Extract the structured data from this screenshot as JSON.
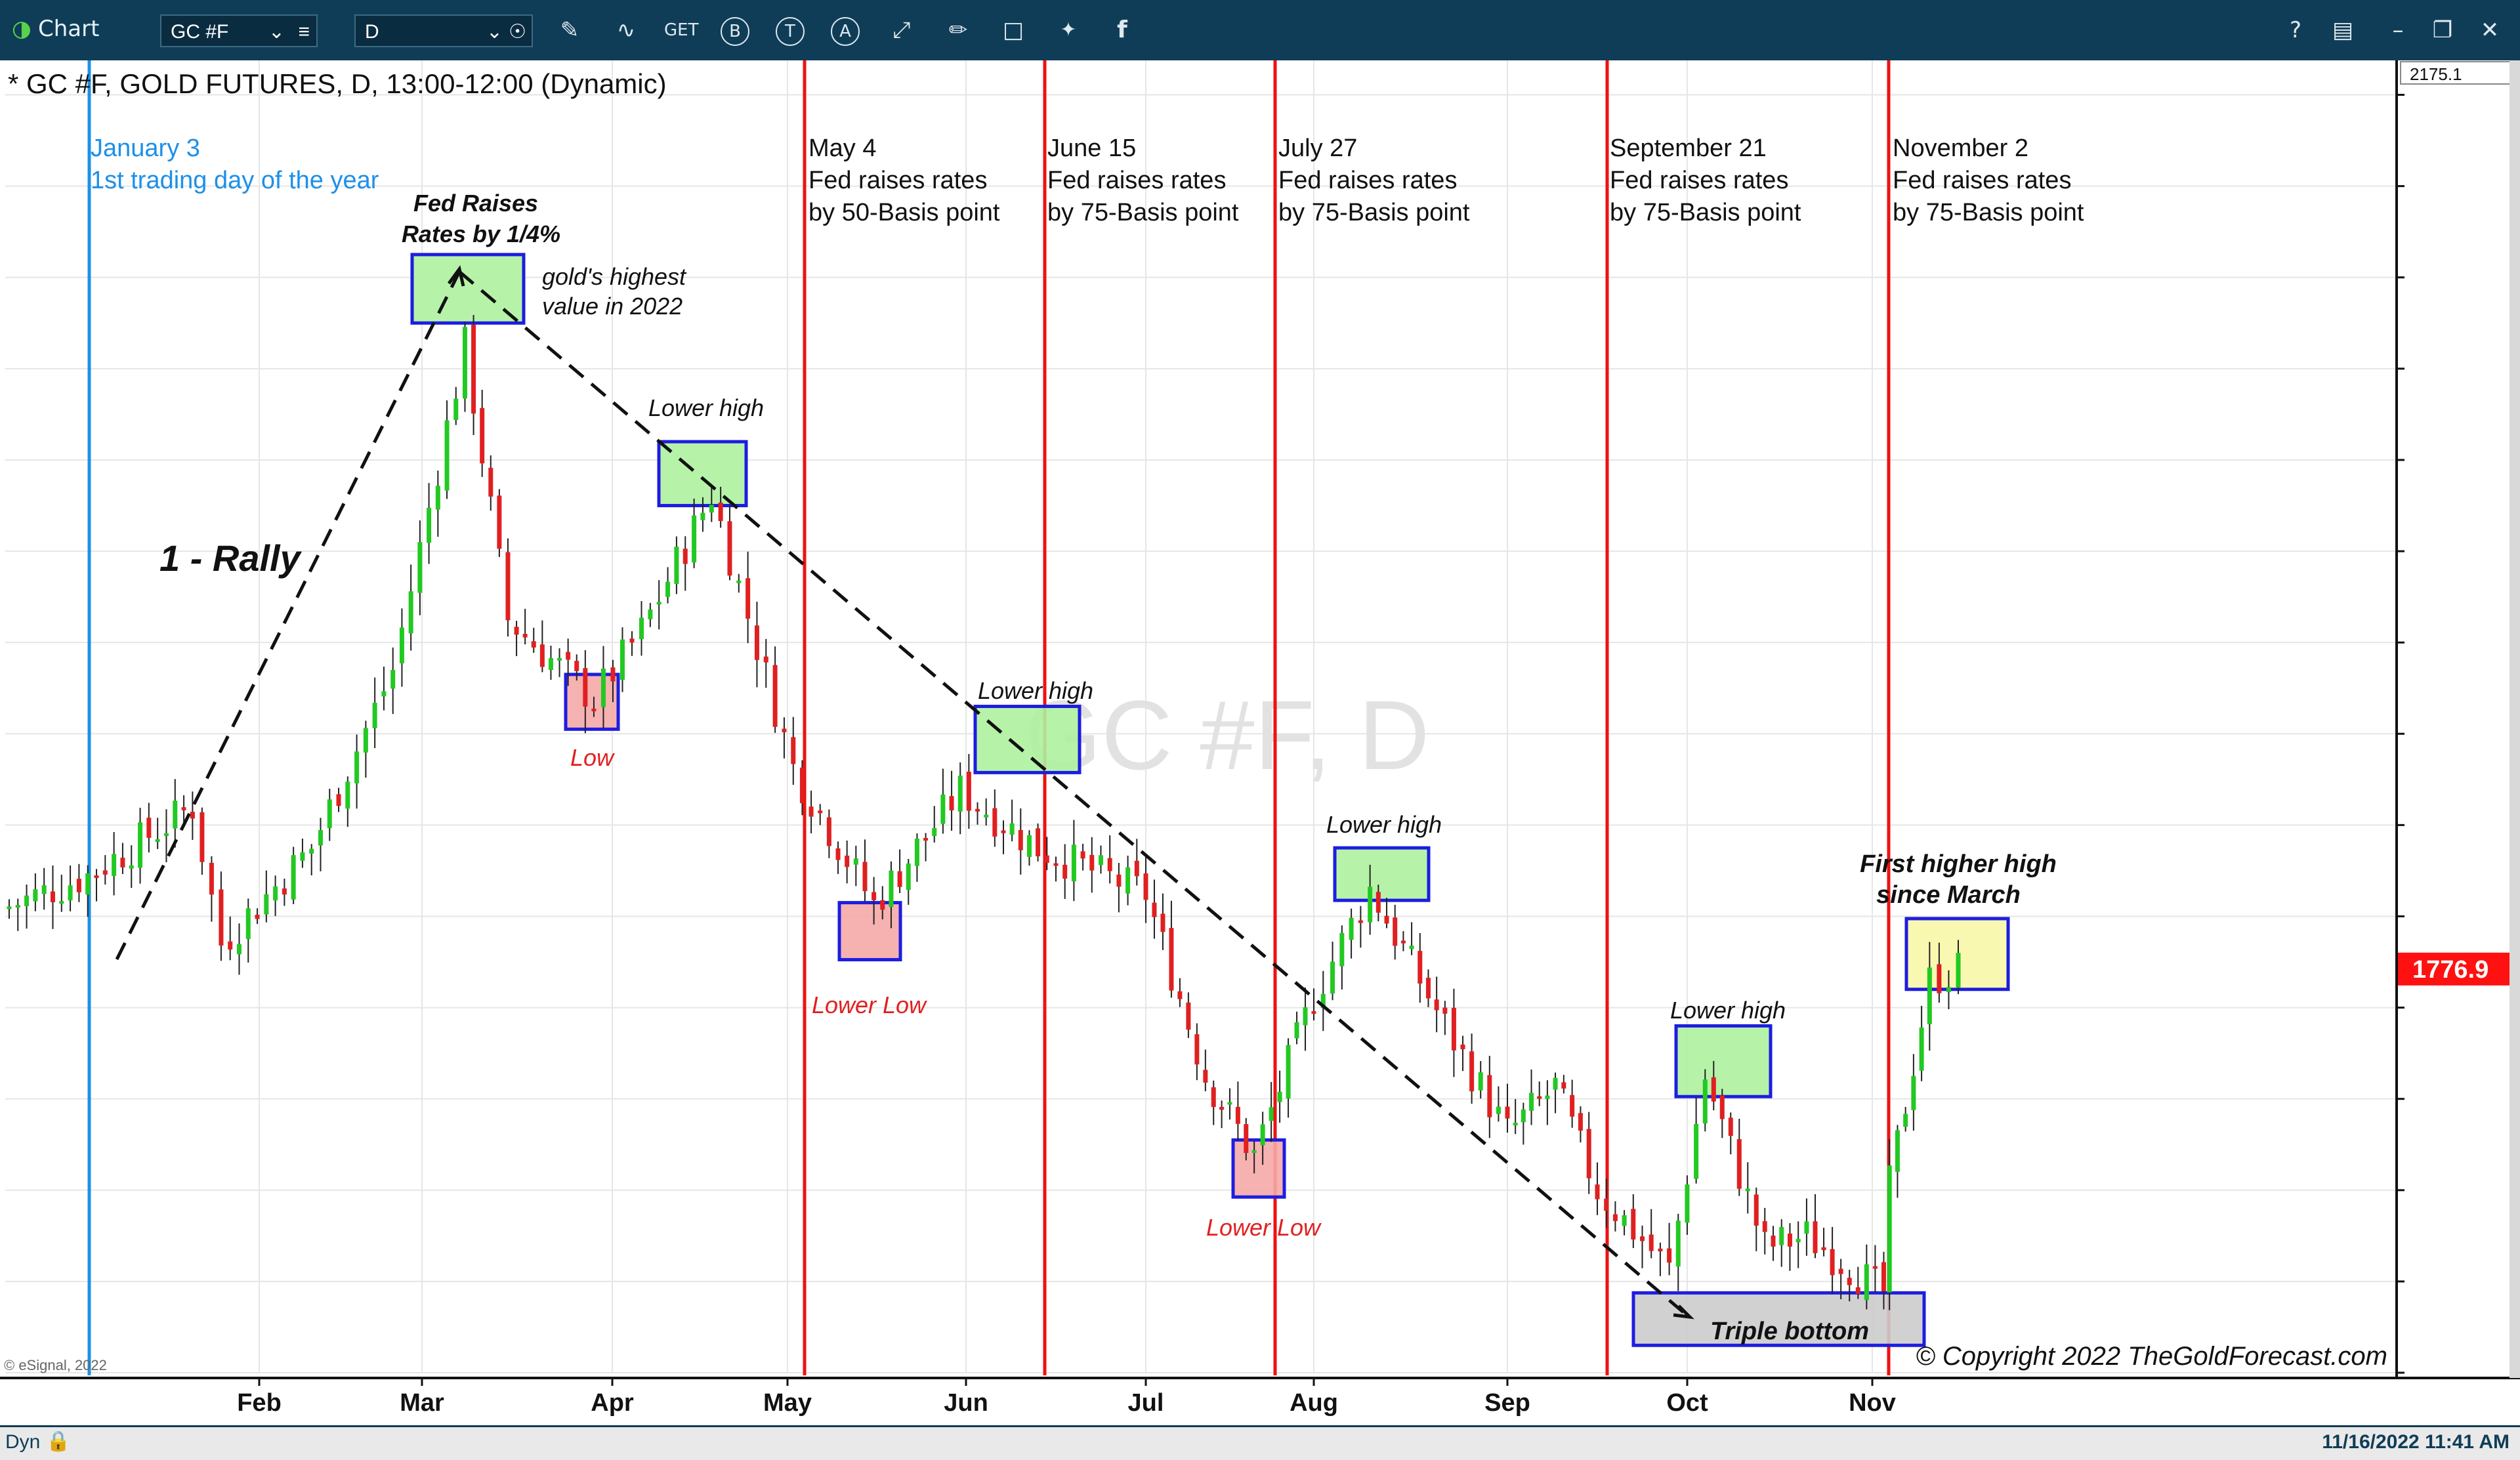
{
  "toolbar": {
    "app_title": "Chart",
    "symbol_value": "GC #F",
    "interval_value": "D",
    "icons": [
      "pencil-icon",
      "wave-icon",
      "get-icon",
      "b-icon",
      "t-icon",
      "a-icon",
      "pin-icon",
      "edit-icon",
      "comment-icon",
      "twitter-icon",
      "facebook-icon"
    ],
    "get_label": "GET",
    "b_label": "B",
    "t_label": "T",
    "a_label": "A",
    "help_label": "?",
    "right_icons": [
      "help-icon",
      "layout-icon",
      "minimize-icon",
      "restore-icon",
      "close-icon"
    ]
  },
  "chart": {
    "title": "* GC #F, GOLD FUTURES, D, 13:00-12:00 (Dynamic)",
    "watermark": "GC #F, D",
    "esignal": "© eSignal, 2022",
    "copyright": "© Copyright 2022 TheGoldForecast.com",
    "top_price_box": "2175.1",
    "current_price": "1776.9",
    "dyn_label": "Dyn",
    "status_datetime": "11/16/2022 11:41 AM"
  },
  "events": [
    {
      "lines": [
        "January 3",
        "1st trading day of the year"
      ],
      "color": "#1e90e8"
    },
    {
      "lines": [
        "May 4",
        "Fed raises rates",
        "by 50-Basis point"
      ],
      "color": "#111111"
    },
    {
      "lines": [
        "June 15",
        "Fed raises rates",
        "by 75-Basis point"
      ],
      "color": "#111111"
    },
    {
      "lines": [
        "July 27",
        "Fed raises rates",
        "by 75-Basis point"
      ],
      "color": "#111111"
    },
    {
      "lines": [
        "September 21",
        "Fed raises rates",
        "by 75-Basis point"
      ],
      "color": "#111111"
    },
    {
      "lines": [
        "November 2",
        "Fed raises rates",
        "by 75-Basis point"
      ],
      "color": "#111111"
    }
  ],
  "annotations": {
    "rally": "1 - Rally",
    "fed_raises_1": "Fed Raises",
    "fed_raises_2": "Rates by 1/4%",
    "golds_high_1": "gold's highest",
    "golds_high_2": "value in 2022",
    "lower_high": "Lower high",
    "low": "Low",
    "lower_low": "Lower Low",
    "triple_bottom": "Triple bottom",
    "first_higher_high_1": "First higher high",
    "first_higher_high_2": "since March"
  },
  "chart_data": {
    "type": "candlestick",
    "title": "* GC #F, GOLD FUTURES, D, 13:00-12:00 (Dynamic)",
    "y_ticks": [
      "2160.0",
      "2120.0",
      "2080.0",
      "2040.0",
      "2000.0",
      "1960.0",
      "1920.0",
      "1880.0",
      "1840.0",
      "1800.0",
      "1760.0",
      "1720.0",
      "1680.0",
      "1640.0",
      "1600.0"
    ],
    "ylim": [
      1600,
      2175.1
    ],
    "x_ticks": [
      "Feb",
      "Mar",
      "Apr",
      "May",
      "Jun",
      "Jul",
      "Aug",
      "Sep",
      "Oct",
      "Nov"
    ],
    "last_price": 1776.9,
    "anchors": [
      {
        "date": "Jan 3",
        "close": 1800
      },
      {
        "date": "Jan 14",
        "close": 1818
      },
      {
        "date": "Jan 25",
        "close": 1848
      },
      {
        "date": "Jan 28",
        "close": 1788
      },
      {
        "date": "Feb 10",
        "close": 1830
      },
      {
        "date": "Feb 24",
        "close": 1908
      },
      {
        "date": "Mar 8",
        "close": 2050
      },
      {
        "date": "Mar 15",
        "close": 1930
      },
      {
        "date": "Mar 29",
        "close": 1895
      },
      {
        "date": "Apr 6",
        "close": 1925
      },
      {
        "date": "Apr 18",
        "close": 1985
      },
      {
        "date": "May 2",
        "close": 1865
      },
      {
        "date": "May 16",
        "close": 1805
      },
      {
        "date": "May 31",
        "close": 1855
      },
      {
        "date": "Jun 13",
        "close": 1830
      },
      {
        "date": "Jul 1",
        "close": 1810
      },
      {
        "date": "Jul 12",
        "close": 1730
      },
      {
        "date": "Jul 21",
        "close": 1695
      },
      {
        "date": "Aug 1",
        "close": 1765
      },
      {
        "date": "Aug 10",
        "close": 1812
      },
      {
        "date": "Aug 22",
        "close": 1752
      },
      {
        "date": "Sep 1",
        "close": 1705
      },
      {
        "date": "Sep 9",
        "close": 1725
      },
      {
        "date": "Sep 16",
        "close": 1680
      },
      {
        "date": "Sep 28",
        "close": 1645
      },
      {
        "date": "Oct 4",
        "close": 1730
      },
      {
        "date": "Oct 14",
        "close": 1655
      },
      {
        "date": "Oct 21",
        "close": 1660
      },
      {
        "date": "Nov 3",
        "close": 1635
      },
      {
        "date": "Nov 4",
        "close": 1682
      },
      {
        "date": "Nov 11",
        "close": 1772
      },
      {
        "date": "Nov 16",
        "close": 1777
      }
    ],
    "highlight_boxes": [
      {
        "label": "Fed Raises Rates by 1/4%",
        "type": "high",
        "color": "green",
        "y_range": [
          2060,
          2090
        ]
      },
      {
        "label": "Lower high",
        "type": "high",
        "color": "green",
        "y_range": [
          1980,
          2008
        ]
      },
      {
        "label": "Low",
        "type": "low",
        "color": "red",
        "y_range": [
          1882,
          1906
        ]
      },
      {
        "label": "Lower high",
        "type": "high",
        "color": "green",
        "y_range": [
          1863,
          1892
        ]
      },
      {
        "label": "Lower Low",
        "type": "low",
        "color": "red",
        "y_range": [
          1781,
          1806
        ]
      },
      {
        "label": "Lower high",
        "type": "high",
        "color": "green",
        "y_range": [
          1807,
          1830
        ]
      },
      {
        "label": "Lower Low",
        "type": "low",
        "color": "red",
        "y_range": [
          1677,
          1702
        ]
      },
      {
        "label": "Lower high",
        "type": "high",
        "color": "green",
        "y_range": [
          1721,
          1752
        ]
      },
      {
        "label": "Triple bottom",
        "type": "low",
        "color": "gray",
        "y_range": [
          1612,
          1635
        ]
      },
      {
        "label": "First higher high since March",
        "type": "high",
        "color": "yellow",
        "y_range": [
          1768,
          1799
        ]
      }
    ],
    "trendlines": [
      "rally line from Jan low to Mar high",
      "downtrend line from Mar high to Sep low"
    ]
  },
  "colors": {
    "toolbar_bg": "#0f3d57",
    "up_candle": "#22c922",
    "down_candle": "#e02020",
    "event_line": "#ee1111",
    "jan_line": "#1e90e8",
    "price_tag": "#ff1111"
  }
}
